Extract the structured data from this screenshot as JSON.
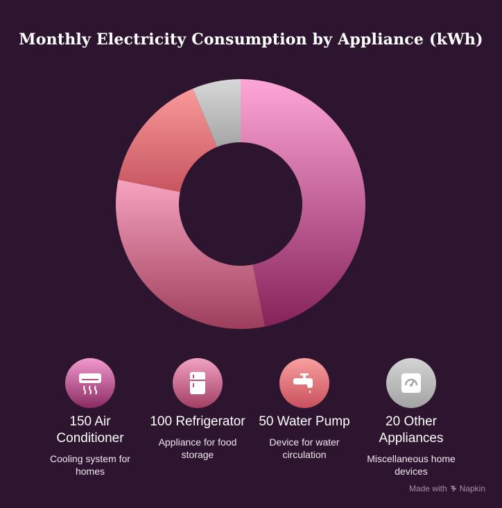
{
  "chart_data": {
    "type": "pie",
    "title": "Monthly Electricity Consumption by Appliance (kWh)",
    "donut": true,
    "slices": [
      {
        "label": "Air Conditioner",
        "value": 150,
        "color_top": "#ffa6d8",
        "color_bottom": "#86225a"
      },
      {
        "label": "Refrigerator",
        "value": 100,
        "color_top": "#f7a3c0",
        "color_bottom": "#9c3e5b"
      },
      {
        "label": "Water Pump",
        "value": 50,
        "color_top": "#f99a9a",
        "color_bottom": "#c65560"
      },
      {
        "label": "Other Appliances",
        "value": 20,
        "color_top": "#d8d8d8",
        "color_bottom": "#a5a5a5"
      }
    ]
  },
  "legend": [
    {
      "title": "150 Air Conditioner",
      "desc": "Cooling system for homes",
      "icon": "air-conditioner-icon",
      "color_top": "#f19ad0",
      "color_bottom": "#8c2a62"
    },
    {
      "title": "100 Refrigerator",
      "desc": "Appliance for food storage",
      "icon": "refrigerator-icon",
      "color_top": "#f2a2c4",
      "color_bottom": "#a23f63"
    },
    {
      "title": "50 Water Pump",
      "desc": "Device for water circulation",
      "icon": "faucet-icon",
      "color_top": "#f8a0a0",
      "color_bottom": "#c8505e"
    },
    {
      "title": "20 Other Appliances",
      "desc": "Miscellaneous home devices",
      "icon": "meter-gauge-icon",
      "color_top": "#d4d4d4",
      "color_bottom": "#a3a3a3"
    }
  ],
  "footer": {
    "text": "Made with",
    "brand": "Napkin"
  }
}
